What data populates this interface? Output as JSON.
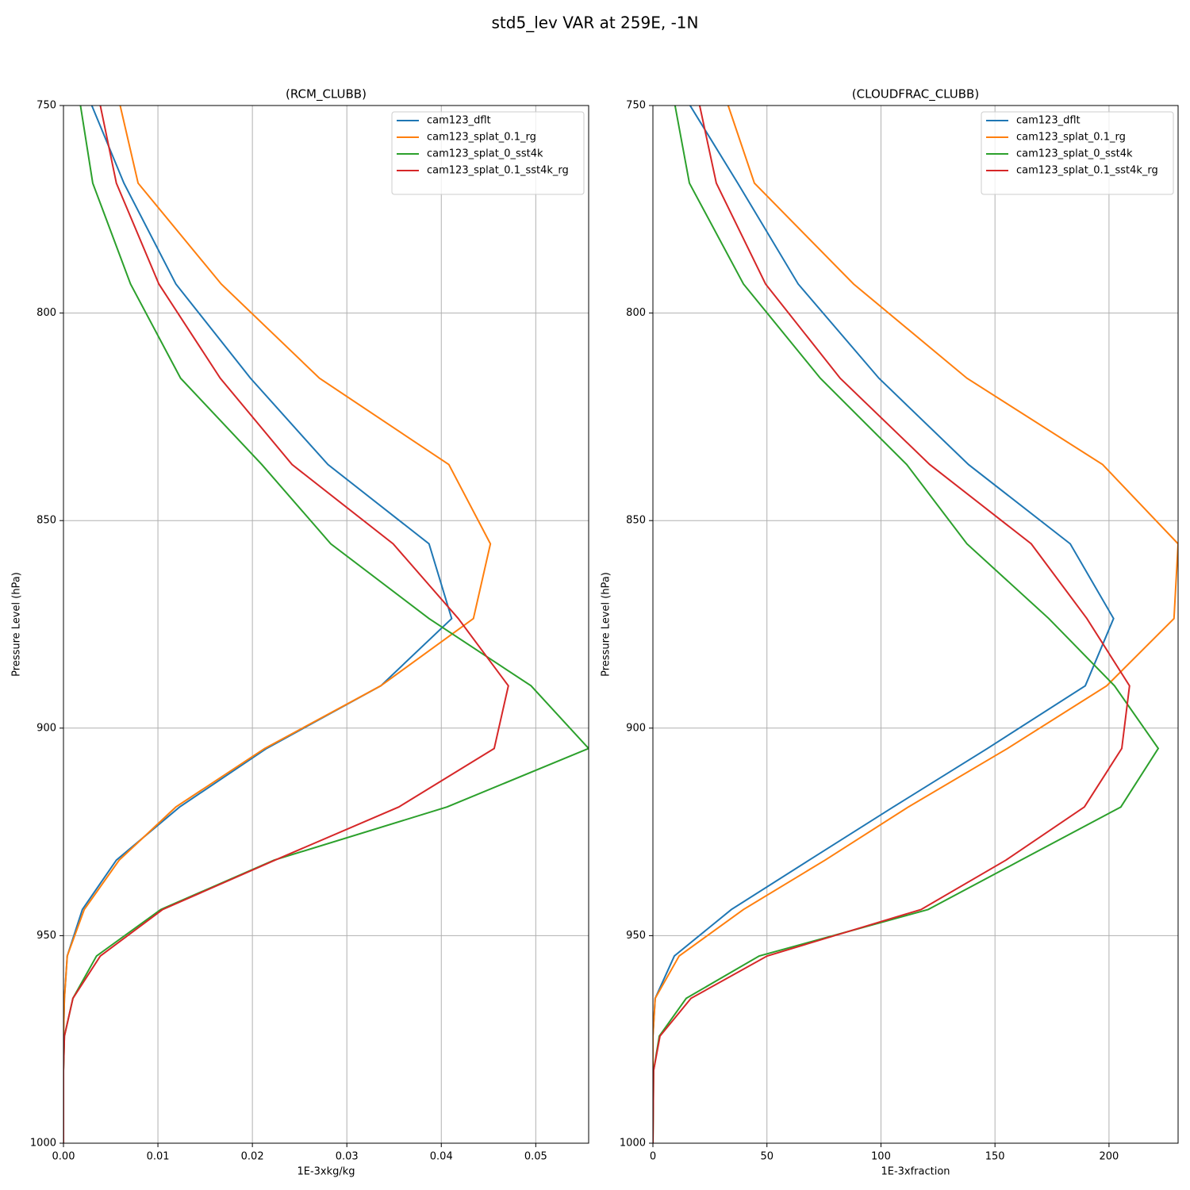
{
  "title": "std5_lev VAR at 259E, -1N",
  "chart_data": [
    {
      "type": "line",
      "title": "(RCM_CLUBB)",
      "xlabel": "1E-3xkg/kg",
      "ylabel": "Pressure Level (hPa)",
      "y": [
        750,
        768.7,
        793.0,
        815.7,
        836.5,
        855.6,
        873.6,
        889.8,
        904.9,
        919.0,
        931.8,
        943.7,
        954.9,
        965.1,
        974.2,
        982.5,
        1000
      ],
      "series": [
        {
          "name": "cam123_dflt",
          "color": "#1f77b4",
          "values": [
            0.003,
            0.0064,
            0.0119,
            0.0198,
            0.028,
            0.0387,
            0.0411,
            0.0336,
            0.0215,
            0.0123,
            0.0056,
            0.002,
            0.0004,
            0.0001,
            0,
            0,
            0
          ]
        },
        {
          "name": "cam123_splat_0.1_rg",
          "color": "#ff7f0e",
          "values": [
            0.006,
            0.0079,
            0.0167,
            0.0271,
            0.0408,
            0.0452,
            0.0434,
            0.0336,
            0.0213,
            0.0119,
            0.0059,
            0.0022,
            0.0004,
            0.0001,
            0,
            0,
            0
          ]
        },
        {
          "name": "cam123_splat_0_sst4k",
          "color": "#2ca02c",
          "values": [
            0.0018,
            0.0031,
            0.0071,
            0.0124,
            0.021,
            0.0283,
            0.0387,
            0.0495,
            0.0556,
            0.0406,
            0.0223,
            0.0103,
            0.0035,
            0.001,
            0.0001,
            0,
            0
          ]
        },
        {
          "name": "cam123_splat_0.1_sst4k_rg",
          "color": "#d62728",
          "values": [
            0.0039,
            0.0056,
            0.0101,
            0.0166,
            0.0242,
            0.0349,
            0.0418,
            0.0471,
            0.0456,
            0.0355,
            0.0224,
            0.0105,
            0.0039,
            0.001,
            0.0001,
            0,
            0
          ]
        }
      ],
      "xlim": [
        0,
        0.0556
      ],
      "xticks": [
        {
          "value": 0,
          "label": "0.00"
        },
        0.01,
        0.02,
        0.03,
        0.04,
        0.05
      ],
      "ylim": [
        1000,
        750
      ],
      "yticks": [
        750,
        800,
        850,
        900,
        950,
        1000
      ],
      "grid": true,
      "legend": "upper right"
    },
    {
      "type": "line",
      "title": "(CLOUDFRAC_CLUBB)",
      "xlabel": "1E-3xfraction",
      "ylabel": "Pressure Level (hPa)",
      "y": [
        750,
        768.7,
        793.0,
        815.7,
        836.5,
        855.6,
        873.6,
        889.8,
        904.9,
        919.0,
        931.8,
        943.7,
        954.9,
        965.1,
        974.2,
        982.5,
        1000
      ],
      "series": [
        {
          "name": "cam123_dflt",
          "color": "#1f77b4",
          "values": [
            16.3,
            37.2,
            63.7,
            99.1,
            138.4,
            183.0,
            202.0,
            189.6,
            146.7,
            105.4,
            68.5,
            34.4,
            9.4,
            1.0,
            0,
            0,
            0
          ]
        },
        {
          "name": "cam123_splat_0.1_rg",
          "color": "#ff7f0e",
          "values": [
            33.0,
            44.5,
            88.0,
            137.7,
            197.2,
            230.3,
            228.5,
            199.0,
            155.5,
            112.0,
            75.5,
            39.7,
            11.5,
            1.0,
            0,
            0,
            0
          ]
        },
        {
          "name": "cam123_splat_0_sst4k",
          "color": "#2ca02c",
          "values": [
            9.7,
            16.0,
            39.7,
            73.4,
            111.3,
            137.7,
            173.6,
            202.4,
            221.6,
            205.2,
            161.4,
            120.7,
            46.6,
            14.6,
            2.8,
            0.3,
            0
          ]
        },
        {
          "name": "cam123_splat_0.1_sst4k_rg",
          "color": "#d62728",
          "values": [
            20.5,
            27.8,
            49.4,
            82.1,
            121.4,
            165.9,
            190.3,
            209.0,
            205.6,
            189.2,
            154.8,
            117.6,
            50.1,
            16.7,
            3.1,
            0.3,
            0
          ]
        }
      ],
      "xlim": [
        0,
        230.3
      ],
      "xticks": [
        0,
        50,
        100,
        150,
        200
      ],
      "ylim": [
        1000,
        750
      ],
      "yticks": [
        750,
        800,
        850,
        900,
        950,
        1000
      ],
      "grid": true,
      "legend": "upper right"
    }
  ]
}
